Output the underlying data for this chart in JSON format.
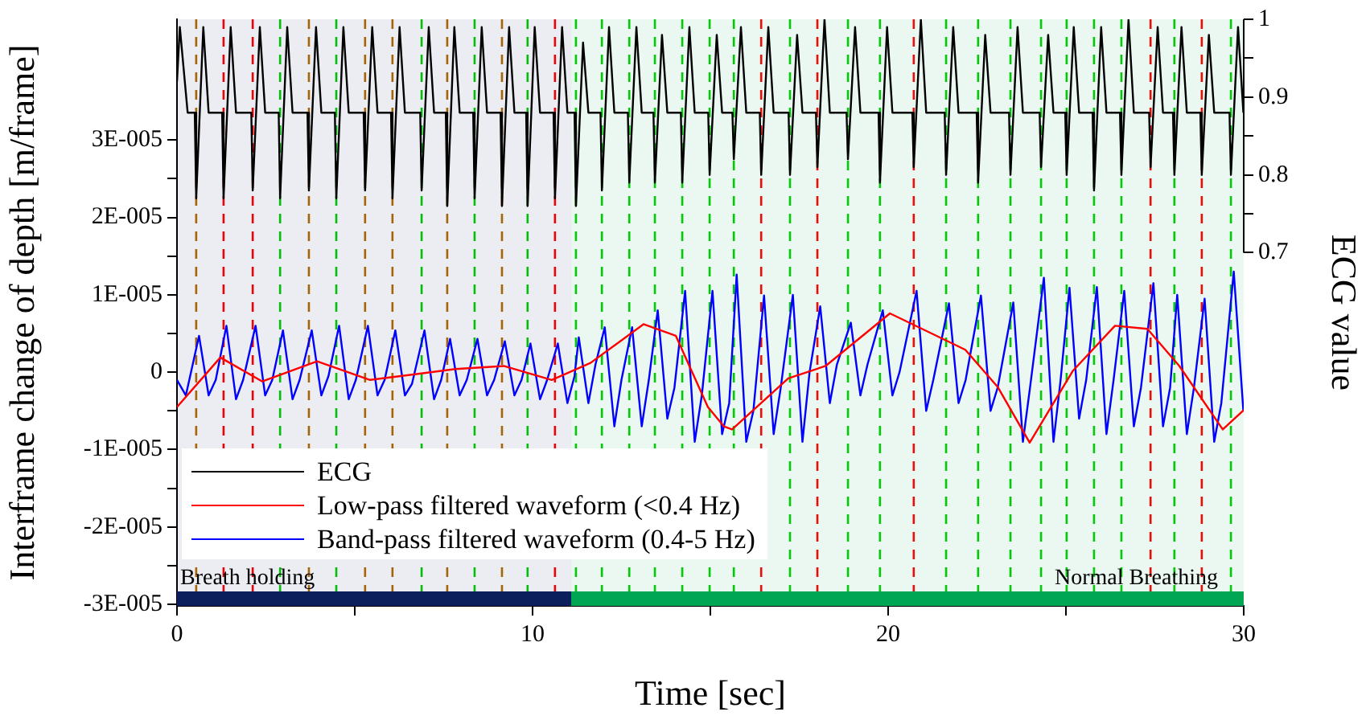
{
  "chart_data": {
    "type": "line",
    "xlabel": "Time [sec]",
    "ylabel": "Interframe change of depth [m/frame]",
    "y2label": "ECG value",
    "xlim": [
      0,
      30
    ],
    "xticks": [
      0,
      {
        "value": 5,
        "label": null
      },
      10,
      {
        "value": 15,
        "label": null
      },
      20,
      {
        "value": 25,
        "label": null
      },
      30
    ],
    "ylim": [
      -3.02e-05,
      4.56e-05
    ],
    "yticks": [
      {
        "value": -3e-05,
        "label": "-3E-005"
      },
      {
        "value": -2.5e-05,
        "label": null
      },
      {
        "value": -2e-05,
        "label": "-2E-005"
      },
      {
        "value": -1.5e-05,
        "label": null
      },
      {
        "value": -1e-05,
        "label": "-1E-005"
      },
      {
        "value": -5e-06,
        "label": null
      },
      0,
      {
        "value": 5e-06,
        "label": null
      },
      {
        "value": 1e-05,
        "label": "1E-005"
      },
      {
        "value": 1.5e-05,
        "label": null
      },
      {
        "value": 2e-05,
        "label": "2E-005"
      },
      {
        "value": 2.5e-05,
        "label": null
      },
      {
        "value": 3e-05,
        "label": "3E-005"
      }
    ],
    "y2lim": [
      0.246,
      1
    ],
    "y2ticks": [
      0.7,
      {
        "value": 0.75,
        "label": null
      },
      0.8,
      {
        "value": 0.85,
        "label": null
      },
      0.9,
      {
        "value": 0.95,
        "label": null
      },
      1
    ],
    "grid": false,
    "legend": "bottom left",
    "marker": "none",
    "line_style": "solid",
    "series": [
      {
        "name": "ECG",
        "color": "#000000",
        "axis": "y2",
        "x": [
          0,
          0.08,
          0.3,
          0.5,
          0.54,
          0.74,
          0.89,
          1.27,
          1.31,
          1.51,
          1.66,
          2.09,
          2.13,
          2.33,
          2.48,
          2.86,
          2.9,
          3.1,
          3.25,
          3.67,
          3.71,
          3.91,
          4.06,
          4.44,
          4.48,
          4.68,
          4.83,
          5.25,
          5.29,
          5.49,
          5.64,
          6.02,
          6.06,
          6.26,
          6.41,
          6.84,
          6.88,
          7.08,
          7.23,
          7.56,
          7.6,
          7.8,
          7.95,
          8.33,
          8.37,
          8.57,
          8.72,
          9.1,
          9.14,
          9.34,
          9.49,
          9.82,
          9.86,
          10.06,
          10.21,
          10.59,
          10.63,
          10.83,
          10.98,
          11.18,
          11.22,
          11.42,
          11.57,
          11.91,
          11.95,
          12.15,
          12.3,
          12.68,
          12.72,
          12.92,
          13.07,
          13.4,
          13.44,
          13.64,
          13.79,
          14.17,
          14.21,
          14.41,
          14.56,
          14.94,
          14.98,
          15.18,
          15.33,
          15.62,
          15.66,
          15.86,
          16.01,
          16.39,
          16.43,
          16.63,
          16.78,
          17.2,
          17.24,
          17.44,
          17.59,
          17.97,
          18.01,
          18.21,
          18.36,
          18.83,
          18.87,
          19.07,
          19.22,
          19.73,
          19.77,
          19.97,
          20.12,
          20.68,
          20.72,
          20.92,
          21.07,
          21.59,
          21.63,
          21.83,
          21.98,
          22.49,
          22.53,
          22.73,
          22.88,
          23.4,
          23.44,
          23.64,
          23.79,
          24.26,
          24.3,
          24.5,
          24.65,
          24.98,
          25.02,
          25.22,
          25.37,
          25.75,
          25.79,
          25.99,
          26.14,
          26.52,
          26.56,
          26.76,
          26.91,
          27.34,
          27.38,
          27.58,
          27.73,
          28.01,
          28.05,
          28.25,
          28.4,
          28.78,
          28.82,
          29.02,
          29.17,
          29.6,
          29.64,
          29.84,
          29.99
        ],
        "values": [
          0.92,
          0.99,
          0.88,
          0.88,
          0.77,
          0.99,
          0.88,
          0.88,
          0.77,
          0.99,
          0.88,
          0.88,
          0.78,
          0.99,
          0.88,
          0.88,
          0.77,
          0.99,
          0.88,
          0.88,
          0.78,
          0.99,
          0.88,
          0.88,
          0.77,
          0.99,
          0.88,
          0.88,
          0.78,
          0.99,
          0.88,
          0.88,
          0.77,
          0.99,
          0.88,
          0.88,
          0.78,
          0.99,
          0.88,
          0.88,
          0.76,
          0.99,
          0.88,
          0.88,
          0.77,
          0.99,
          0.88,
          0.88,
          0.76,
          0.99,
          0.88,
          0.88,
          0.76,
          0.99,
          0.88,
          0.88,
          0.77,
          0.99,
          0.88,
          0.88,
          0.76,
          0.97,
          0.88,
          0.88,
          0.78,
          0.99,
          0.88,
          0.88,
          0.79,
          0.99,
          0.88,
          0.88,
          0.79,
          0.98,
          0.88,
          0.88,
          0.79,
          0.99,
          0.88,
          0.88,
          0.8,
          0.98,
          0.88,
          0.88,
          0.82,
          0.99,
          0.88,
          0.88,
          0.8,
          0.99,
          0.88,
          0.88,
          0.8,
          0.98,
          0.88,
          0.88,
          0.81,
          1,
          0.88,
          0.88,
          0.82,
          0.99,
          0.88,
          0.88,
          0.79,
          0.99,
          0.88,
          0.88,
          0.81,
          1,
          0.88,
          0.88,
          0.8,
          0.99,
          0.88,
          0.88,
          0.79,
          0.98,
          0.88,
          0.88,
          0.8,
          0.99,
          0.88,
          0.88,
          0.81,
          0.98,
          0.88,
          0.88,
          0.8,
          0.99,
          0.88,
          0.88,
          0.78,
          0.99,
          0.88,
          0.88,
          0.8,
          1,
          0.88,
          0.88,
          0.81,
          0.99,
          0.88,
          0.88,
          0.8,
          0.99,
          0.88,
          0.88,
          0.8,
          0.98,
          0.88,
          0.88,
          0.8,
          0.99,
          0.88
        ]
      },
      {
        "name": "Low-pass filtered waveform (<0.4 Hz)",
        "color": "#ff0000",
        "x": [
          0,
          1.22,
          2.4,
          3.94,
          5.43,
          7.83,
          9.19,
          10.54,
          11.63,
          13.12,
          14.03,
          14.93,
          15.38,
          15.61,
          17.19,
          18.24,
          20.05,
          21.27,
          22.17,
          23.08,
          23.98,
          25.2,
          26.38,
          27.29,
          28.19,
          29.41,
          30
        ],
        "values": [
          -4.5e-06,
          1.9e-06,
          -1.2e-06,
          1.4e-06,
          -1e-06,
          4e-07,
          8e-07,
          -1e-06,
          1.2e-06,
          6.2e-06,
          4.7e-06,
          -4.5e-06,
          -7e-06,
          -7.4e-06,
          -8e-07,
          8e-07,
          7.6e-06,
          4.9e-06,
          2.9e-06,
          -1.9e-06,
          -9.1e-06,
          2e-07,
          6e-06,
          5.6e-06,
          8e-07,
          -7.4e-06,
          -4.9e-06
        ]
      },
      {
        "name": "Band-pass filtered waveform (0.4-5 Hz)",
        "color": "#0000ff",
        "x": [
          0,
          0.25,
          0.62,
          0.89,
          1.09,
          1.39,
          1.66,
          1.86,
          2.21,
          2.48,
          2.68,
          2.98,
          3.25,
          3.45,
          3.79,
          4.06,
          4.26,
          4.56,
          4.83,
          5.03,
          5.37,
          5.64,
          5.84,
          6.14,
          6.41,
          6.61,
          6.96,
          7.23,
          7.43,
          7.68,
          7.95,
          8.15,
          8.45,
          8.72,
          8.92,
          9.22,
          9.49,
          9.69,
          9.94,
          10.21,
          10.41,
          10.71,
          10.98,
          11.18,
          11.3,
          11.57,
          11.77,
          12.03,
          12.3,
          12.5,
          12.8,
          13.07,
          13.27,
          13.52,
          13.79,
          13.99,
          14.29,
          14.56,
          14.76,
          15.06,
          15.33,
          15.53,
          15.74,
          16.01,
          16.21,
          16.51,
          16.78,
          16.98,
          17.32,
          17.59,
          17.79,
          18.09,
          18.36,
          18.56,
          18.95,
          19.22,
          19.42,
          19.85,
          20.12,
          20.32,
          20.8,
          21.07,
          21.27,
          21.71,
          21.98,
          22.18,
          22.61,
          22.88,
          23.08,
          23.52,
          23.79,
          23.99,
          24.38,
          24.65,
          24.85,
          25.1,
          25.37,
          25.57,
          25.87,
          26.14,
          26.34,
          26.64,
          26.91,
          27.11,
          27.46,
          27.73,
          27.93,
          28.13,
          28.4,
          28.6,
          28.9,
          29.17,
          29.37,
          29.72,
          29.99
        ],
        "values": [
          -1e-06,
          -3e-06,
          4.7e-06,
          -3e-06,
          -1e-06,
          6e-06,
          -3.5e-06,
          -1e-06,
          6e-06,
          -3e-06,
          -1e-06,
          5.4e-06,
          -3.5e-06,
          -1e-06,
          5.4e-06,
          -3e-06,
          -5e-07,
          6e-06,
          -3.5e-06,
          -1e-06,
          6e-06,
          -3e-06,
          -1e-06,
          5.4e-06,
          -3e-06,
          -1.5e-06,
          5.4e-06,
          -3.5e-06,
          -1e-06,
          4.3e-06,
          -3e-06,
          -1e-06,
          4.3e-06,
          -3e-06,
          -1e-06,
          4e-06,
          -3e-06,
          -1e-06,
          3.7e-06,
          -3.5e-06,
          -1e-06,
          3.7e-06,
          -4e-06,
          -5e-07,
          4.5e-06,
          -4e-06,
          1e-06,
          5.8e-06,
          -7e-06,
          -1e-06,
          5.8e-06,
          -7e-06,
          -1e-06,
          8e-06,
          -6e-06,
          -2e-06,
          1.05e-05,
          -9e-06,
          -3e-06,
          1.05e-05,
          -8e-06,
          -4e-06,
          1.26e-05,
          -9e-06,
          -5e-06,
          9.9e-06,
          -8e-06,
          -2e-06,
          1e-05,
          -9e-06,
          0,
          8.5e-06,
          -4e-06,
          1e-06,
          6.4e-06,
          -3e-06,
          1e-06,
          8e-06,
          -3e-06,
          0,
          1.05e-05,
          -5e-06,
          -1e-06,
          8.9e-06,
          -4e-06,
          -1e-06,
          9.9e-06,
          -5e-06,
          -2e-06,
          9e-06,
          -9e-06,
          -2e-06,
          1.22e-05,
          -9e-06,
          -1e-06,
          1.09e-05,
          -6e-06,
          -1e-06,
          1.1e-05,
          -8e-06,
          -1e-06,
          1.05e-05,
          -7e-06,
          -2e-06,
          1.15e-05,
          -7e-06,
          -2e-06,
          1e-05,
          -8e-06,
          -2e-06,
          9.5e-06,
          -9e-06,
          -4e-06,
          1.3e-05,
          -5e-06
        ]
      }
    ],
    "ref_lines": [
      {
        "axis": "x",
        "value": 0.54,
        "color": "#b36b00",
        "line_style": "dashed"
      },
      {
        "axis": "x",
        "value": 1.31,
        "color": "#ff0000",
        "line_style": "dashed"
      },
      {
        "axis": "x",
        "value": 2.13,
        "color": "#ff0000",
        "line_style": "dashed"
      },
      {
        "axis": "x",
        "value": 2.9,
        "color": "#00cc00",
        "line_style": "dashed"
      },
      {
        "axis": "x",
        "value": 3.71,
        "color": "#b36b00",
        "line_style": "dashed"
      },
      {
        "axis": "x",
        "value": 4.48,
        "color": "#00cc00",
        "line_style": "dashed"
      },
      {
        "axis": "x",
        "value": 5.29,
        "color": "#b36b00",
        "line_style": "dashed"
      },
      {
        "axis": "x",
        "value": 6.06,
        "color": "#b36b00",
        "line_style": "dashed"
      },
      {
        "axis": "x",
        "value": 6.88,
        "color": "#00cc00",
        "line_style": "dashed"
      },
      {
        "axis": "x",
        "value": 7.6,
        "color": "#b36b00",
        "line_style": "dashed"
      },
      {
        "axis": "x",
        "value": 8.37,
        "color": "#00cc00",
        "line_style": "dashed"
      },
      {
        "axis": "x",
        "value": 9.14,
        "color": "#b36b00",
        "line_style": "dashed"
      },
      {
        "axis": "x",
        "value": 9.86,
        "color": "#00cc00",
        "line_style": "dashed"
      },
      {
        "axis": "x",
        "value": 10.63,
        "color": "#ff0000",
        "line_style": "dashed"
      },
      {
        "axis": "x",
        "value": 11.22,
        "color": "#00cc00",
        "line_style": "dashed"
      },
      {
        "axis": "x",
        "value": 11.95,
        "color": "#00cc00",
        "line_style": "dashed"
      },
      {
        "axis": "x",
        "value": 12.72,
        "color": "#00cc00",
        "line_style": "dashed"
      },
      {
        "axis": "x",
        "value": 13.44,
        "color": "#00cc00",
        "line_style": "dashed"
      },
      {
        "axis": "x",
        "value": 14.21,
        "color": "#00cc00",
        "line_style": "dashed"
      },
      {
        "axis": "x",
        "value": 14.98,
        "color": "#00cc00",
        "line_style": "dashed"
      },
      {
        "axis": "x",
        "value": 15.66,
        "color": "#00cc00",
        "line_style": "dashed"
      },
      {
        "axis": "x",
        "value": 16.43,
        "color": "#ff0000",
        "line_style": "dashed"
      },
      {
        "axis": "x",
        "value": 17.24,
        "color": "#00cc00",
        "line_style": "dashed"
      },
      {
        "axis": "x",
        "value": 18.01,
        "color": "#ff0000",
        "line_style": "dashed"
      },
      {
        "axis": "x",
        "value": 18.87,
        "color": "#00cc00",
        "line_style": "dashed"
      },
      {
        "axis": "x",
        "value": 19.77,
        "color": "#00cc00",
        "line_style": "dashed"
      },
      {
        "axis": "x",
        "value": 20.72,
        "color": "#ff0000",
        "line_style": "dashed"
      },
      {
        "axis": "x",
        "value": 21.63,
        "color": "#00cc00",
        "line_style": "dashed"
      },
      {
        "axis": "x",
        "value": 22.53,
        "color": "#00cc00",
        "line_style": "dashed"
      },
      {
        "axis": "x",
        "value": 23.44,
        "color": "#00cc00",
        "line_style": "dashed"
      },
      {
        "axis": "x",
        "value": 24.3,
        "color": "#00cc00",
        "line_style": "dashed"
      },
      {
        "axis": "x",
        "value": 25.02,
        "color": "#00cc00",
        "line_style": "dashed"
      },
      {
        "axis": "x",
        "value": 25.79,
        "color": "#00cc00",
        "line_style": "dashed"
      },
      {
        "axis": "x",
        "value": 26.56,
        "color": "#00cc00",
        "line_style": "dashed"
      },
      {
        "axis": "x",
        "value": 27.38,
        "color": "#ff0000",
        "line_style": "dashed"
      },
      {
        "axis": "x",
        "value": 28.05,
        "color": "#00cc00",
        "line_style": "dashed"
      },
      {
        "axis": "x",
        "value": 28.82,
        "color": "#ff0000",
        "line_style": "dashed"
      },
      {
        "axis": "x",
        "value": 29.64,
        "color": "#00cc00",
        "line_style": "dashed"
      }
    ],
    "bands": [
      {
        "axis": "x",
        "from": 0,
        "to": 11.09,
        "label": "Breath holding",
        "color": "#0a1f5c"
      },
      {
        "axis": "x",
        "from": 11.09,
        "to": 30,
        "label": "Normal Breathing",
        "color": "#00a651"
      }
    ]
  }
}
